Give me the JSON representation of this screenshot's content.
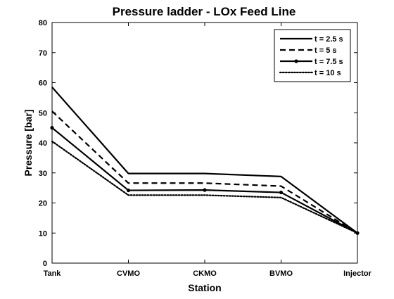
{
  "chart_data": {
    "type": "line",
    "title": "Pressure ladder - LOx Feed Line",
    "xlabel": "Station",
    "ylabel": "Pressure [bar]",
    "categories": [
      "Tank",
      "CVMO",
      "CKMO",
      "BVMO",
      "Injector"
    ],
    "ylim": [
      0,
      80
    ],
    "yticks": [
      0,
      10,
      20,
      30,
      40,
      50,
      60,
      70,
      80
    ],
    "grid": false,
    "legend_position": "top-right",
    "series": [
      {
        "name": "t = 2.5 s",
        "values": [
          58.5,
          29.8,
          29.8,
          28.8,
          10.0
        ],
        "style": "solid",
        "marker": "none",
        "color": "#000000"
      },
      {
        "name": "t = 5 s",
        "values": [
          50.5,
          26.6,
          26.6,
          25.6,
          10.0
        ],
        "style": "dashed",
        "marker": "none",
        "color": "#000000"
      },
      {
        "name": "t = 7.5 s",
        "values": [
          45.0,
          24.2,
          24.3,
          23.5,
          10.0
        ],
        "style": "solid",
        "marker": "dot",
        "color": "#000000"
      },
      {
        "name": "t = 10 s",
        "values": [
          40.5,
          22.6,
          22.6,
          21.8,
          10.0
        ],
        "style": "dotted",
        "marker": "none",
        "color": "#000000"
      }
    ]
  }
}
